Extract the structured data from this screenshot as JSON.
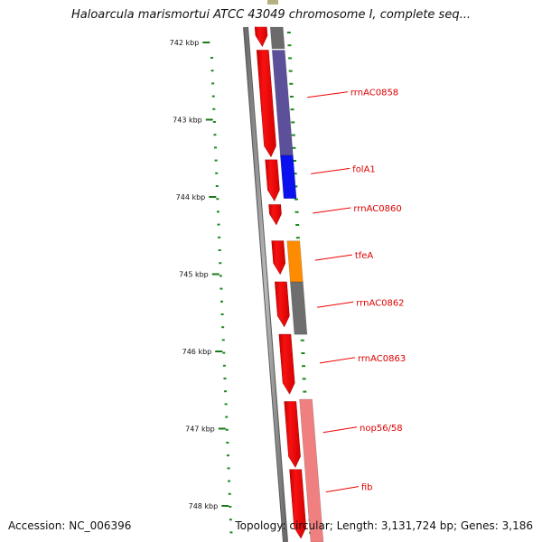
{
  "title": "Haloarcula marismortui ATCC 43049 chromosome I, complete seq...",
  "accession_text": "Accession: NC_006396",
  "topology_text": "Topology: circular; Length: 3,131,724 bp; Genes: 3,186",
  "colors": {
    "ruler_tick": "#1a7a1a",
    "dotted_track": "#1a8a1a",
    "backbone": "#888888",
    "gene_forward": "#ee0000",
    "label": "#dd0000",
    "leader": "#ee0000"
  },
  "ruler": [
    {
      "kbp": 742,
      "label": "742 kbp"
    },
    {
      "kbp": 743,
      "label": "743 kbp"
    },
    {
      "kbp": 744,
      "label": "744 kbp"
    },
    {
      "kbp": 745,
      "label": "745 kbp"
    },
    {
      "kbp": 746,
      "label": "746 kbp"
    },
    {
      "kbp": 747,
      "label": "747 kbp"
    },
    {
      "kbp": 748,
      "label": "748 kbp"
    }
  ],
  "genes": [
    {
      "start_kbp": 741.72,
      "end_kbp": 742.05
    },
    {
      "start_kbp": 742.1,
      "end_kbp": 743.48
    },
    {
      "start_kbp": 743.52,
      "end_kbp": 744.05
    },
    {
      "start_kbp": 744.1,
      "end_kbp": 744.36
    },
    {
      "start_kbp": 744.57,
      "end_kbp": 745.0
    },
    {
      "start_kbp": 745.1,
      "end_kbp": 745.68
    },
    {
      "start_kbp": 745.78,
      "end_kbp": 746.55
    },
    {
      "start_kbp": 746.65,
      "end_kbp": 747.5
    },
    {
      "start_kbp": 747.53,
      "end_kbp": 748.42
    }
  ],
  "features": [
    {
      "name": "",
      "start_kbp": 741.72,
      "end_kbp": 742.08,
      "color": "#6b6b6b"
    },
    {
      "name": "rrnAC0858",
      "start_kbp": 742.1,
      "end_kbp": 743.46,
      "color": "#5d509a",
      "label_kbp": 742.71
    },
    {
      "name": "folA1",
      "start_kbp": 743.46,
      "end_kbp": 744.02,
      "color": "#0a10ee",
      "label_kbp": 743.7
    },
    {
      "name": "rrnAC0860",
      "start_kbp": null,
      "end_kbp": null,
      "color": null,
      "label_kbp": 744.21
    },
    {
      "name": "tfeA",
      "start_kbp": 744.57,
      "end_kbp": 745.1,
      "color": "#ff8c00",
      "label_kbp": 744.82
    },
    {
      "name": "rrnAC0862",
      "start_kbp": 745.1,
      "end_kbp": 745.78,
      "color": "#6e6e6e",
      "label_kbp": 745.43
    },
    {
      "name": "rrnAC0863",
      "start_kbp": null,
      "end_kbp": null,
      "color": null,
      "label_kbp": 746.15
    },
    {
      "name": "nop56/58",
      "start_kbp": 746.62,
      "end_kbp": 748.55,
      "color": "#f08080",
      "label_kbp": 747.05
    },
    {
      "name": "fib",
      "start_kbp": null,
      "end_kbp": null,
      "color": null,
      "label_kbp": 747.82
    }
  ]
}
